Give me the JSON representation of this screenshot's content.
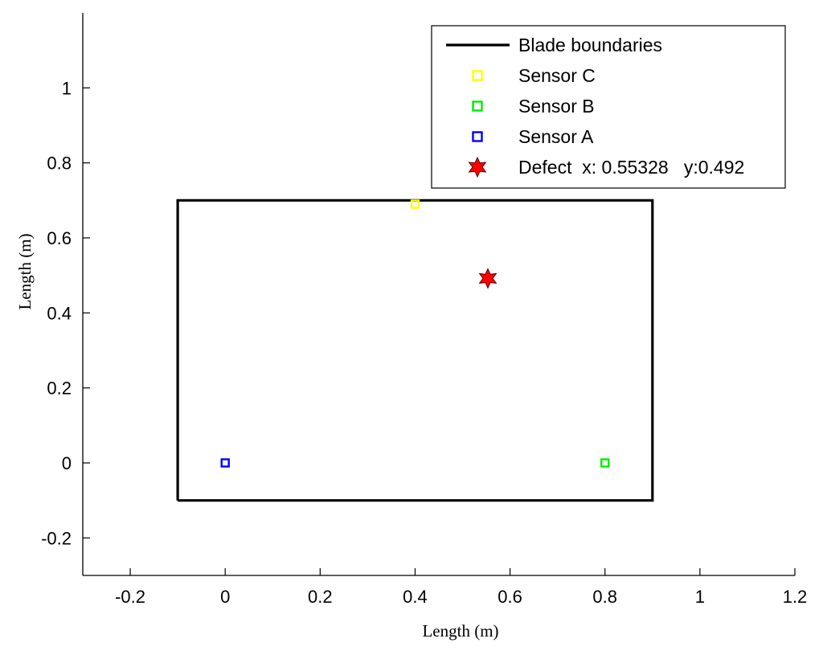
{
  "chart_data": {
    "type": "scatter",
    "title": "",
    "xlabel": "Length (m)",
    "ylabel": "Length (m)",
    "xlim": [
      -0.3,
      1.2
    ],
    "ylim": [
      -0.3,
      1.2
    ],
    "xticks": [
      -0.2,
      0,
      0.2,
      0.4,
      0.6,
      0.8,
      1,
      1.2
    ],
    "xtick_labels": [
      "-0.2",
      "0",
      "0.2",
      "0.4",
      "0.6",
      "0.8",
      "1",
      "1.2"
    ],
    "yticks": [
      -0.2,
      0,
      0.2,
      0.4,
      0.6,
      0.8,
      1
    ],
    "ytick_labels": [
      "-0.2",
      "0",
      "0.2",
      "0.4",
      "0.6",
      "0.8",
      "1"
    ],
    "grid": false,
    "legend_position": "top-right",
    "series": [
      {
        "name": "Blade boundaries",
        "kind": "line",
        "color": "#000000",
        "x": [
          -0.1,
          0.9,
          0.9,
          -0.1,
          -0.1
        ],
        "y": [
          -0.1,
          -0.1,
          0.7,
          0.7,
          -0.1
        ]
      },
      {
        "name": "Sensor C",
        "kind": "marker",
        "marker": "square",
        "color": "#ffff00",
        "x": [
          0.4
        ],
        "y": [
          0.69
        ]
      },
      {
        "name": "Sensor B",
        "kind": "marker",
        "marker": "square",
        "color": "#00ee00",
        "x": [
          0.8
        ],
        "y": [
          0
        ]
      },
      {
        "name": "Sensor A",
        "kind": "marker",
        "marker": "square",
        "color": "#0000ff",
        "x": [
          0
        ],
        "y": [
          0
        ]
      },
      {
        "name": "Defect  x: 0.55328   y:0.492",
        "kind": "marker",
        "marker": "hexagram",
        "color": "#ff0000",
        "x": [
          0.55328
        ],
        "y": [
          0.492
        ]
      }
    ]
  }
}
